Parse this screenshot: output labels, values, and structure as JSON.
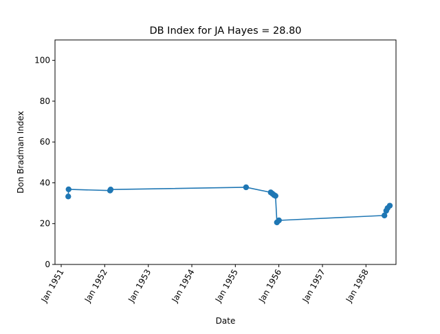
{
  "chart_data": {
    "type": "line",
    "title": "DB Index for JA Hayes = 28.80",
    "xlabel": "Date",
    "ylabel": "Don Bradman Index",
    "xlim": [
      "1950-11-10",
      "1958-09-10"
    ],
    "ylim": [
      0,
      110
    ],
    "x_ticks": [
      "1951-01-01",
      "1952-01-01",
      "1953-01-01",
      "1954-01-01",
      "1955-01-01",
      "1956-01-01",
      "1957-01-01",
      "1958-01-01"
    ],
    "x_tick_labels": [
      "Jan 1951",
      "Jan 1952",
      "Jan 1953",
      "Jan 1954",
      "Jan 1955",
      "Jan 1956",
      "Jan 1957",
      "Jan 1958"
    ],
    "y_ticks": [
      0,
      20,
      40,
      60,
      80,
      100
    ],
    "y_tick_labels": [
      "0",
      "20",
      "40",
      "60",
      "80",
      "100"
    ],
    "grid": false,
    "series": [
      {
        "color": "#1f77b4",
        "marker": "circle",
        "points": [
          {
            "x": "1951-03-01",
            "y": 33.3
          },
          {
            "x": "1951-03-04",
            "y": 36.8
          },
          {
            "x": "1952-02-15",
            "y": 36.2
          },
          {
            "x": "1952-02-20",
            "y": 36.7
          },
          {
            "x": "1955-04-01",
            "y": 37.8
          },
          {
            "x": "1955-10-25",
            "y": 35.3
          },
          {
            "x": "1955-11-08",
            "y": 34.7
          },
          {
            "x": "1955-11-22",
            "y": 34.0
          },
          {
            "x": "1955-12-04",
            "y": 33.6
          },
          {
            "x": "1955-12-16",
            "y": 20.6
          },
          {
            "x": "1956-01-02",
            "y": 21.6
          },
          {
            "x": "1958-06-05",
            "y": 24.0
          },
          {
            "x": "1958-06-20",
            "y": 26.3
          },
          {
            "x": "1958-07-01",
            "y": 27.6
          },
          {
            "x": "1958-07-20",
            "y": 28.8
          }
        ]
      }
    ]
  }
}
